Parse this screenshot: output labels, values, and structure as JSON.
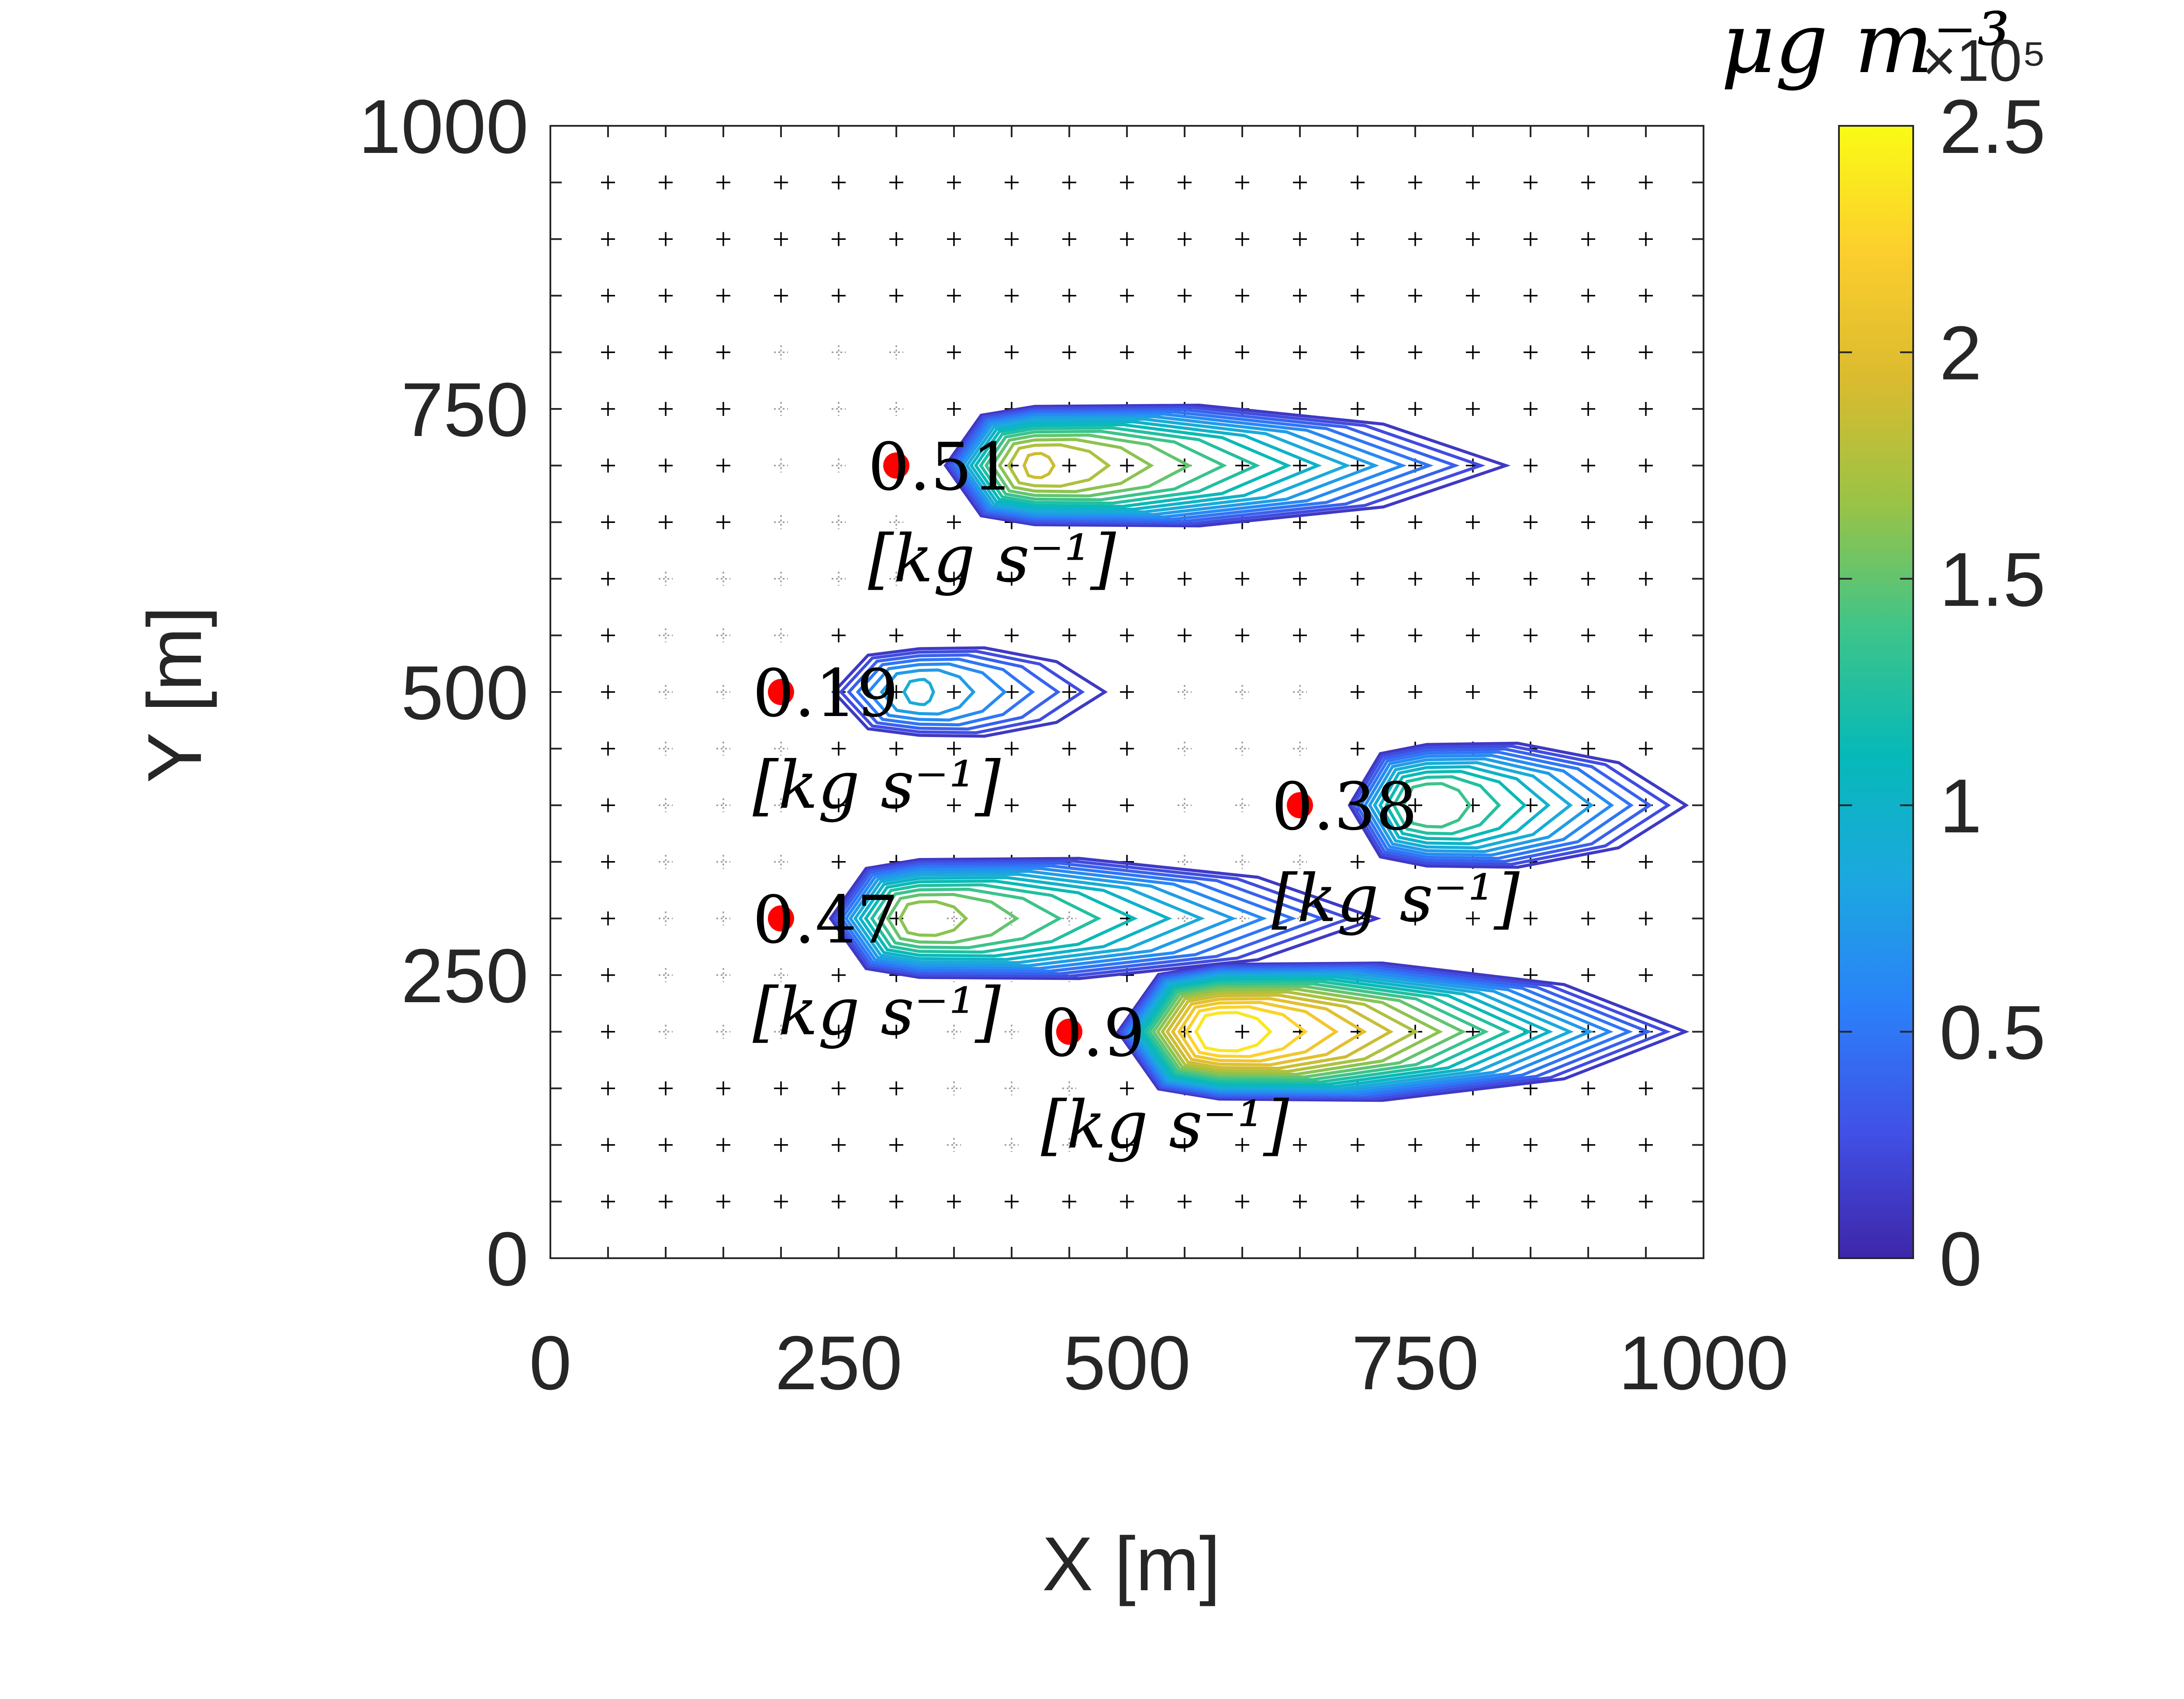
{
  "chart_data": {
    "type": "contour",
    "xlabel": "X [m]",
    "ylabel": "Y [m]",
    "xlim": [
      0,
      1000
    ],
    "ylim": [
      0,
      1000
    ],
    "xticks": [
      "0",
      "250",
      "500",
      "750",
      "1000"
    ],
    "yticks": [
      "0",
      "250",
      "500",
      "750",
      "1000"
    ],
    "grid_step": 50,
    "colorbar": {
      "title": "μg m⁻³",
      "exponent_label": "×10⁵",
      "ticks": [
        "0",
        "0.5",
        "1",
        "1.5",
        "2",
        "2.5"
      ],
      "range": [
        0,
        2.5
      ],
      "colormap": [
        "#3e26a8",
        "#4150e6",
        "#2b80f9",
        "#1ca8df",
        "#06b9b8",
        "#3ec48a",
        "#9ac346",
        "#dbbb2f",
        "#fcce2e",
        "#f9fb15"
      ]
    },
    "sources": [
      {
        "x": 300,
        "y": 700,
        "rate": "0.51",
        "unit": "[kg s⁻¹]"
      },
      {
        "x": 200,
        "y": 500,
        "rate": "0.19",
        "unit": "[kg s⁻¹]"
      },
      {
        "x": 650,
        "y": 400,
        "rate": "0.38",
        "unit": "[kg s⁻¹]"
      },
      {
        "x": 200,
        "y": 300,
        "rate": "0.47",
        "unit": "[kg s⁻¹]"
      },
      {
        "x": 450,
        "y": 200,
        "rate": "0.9",
        "unit": "[kg s⁻¹]"
      }
    ],
    "plumes": [
      {
        "x0": 300,
        "y0": 700,
        "peak": 1.9,
        "xc": 420,
        "len": 850,
        "wid": 48
      },
      {
        "x0": 200,
        "y0": 500,
        "peak": 0.9,
        "xc": 320,
        "len": 500,
        "wid": 35
      },
      {
        "x0": 650,
        "y0": 400,
        "peak": 1.5,
        "xc": 760,
        "len": 1000,
        "wid": 50
      },
      {
        "x0": 200,
        "y0": 300,
        "peak": 1.7,
        "xc": 320,
        "len": 740,
        "wid": 48
      },
      {
        "x0": 450,
        "y0": 200,
        "peak": 2.5,
        "xc": 580,
        "len": 1000,
        "wid": 55
      }
    ]
  }
}
